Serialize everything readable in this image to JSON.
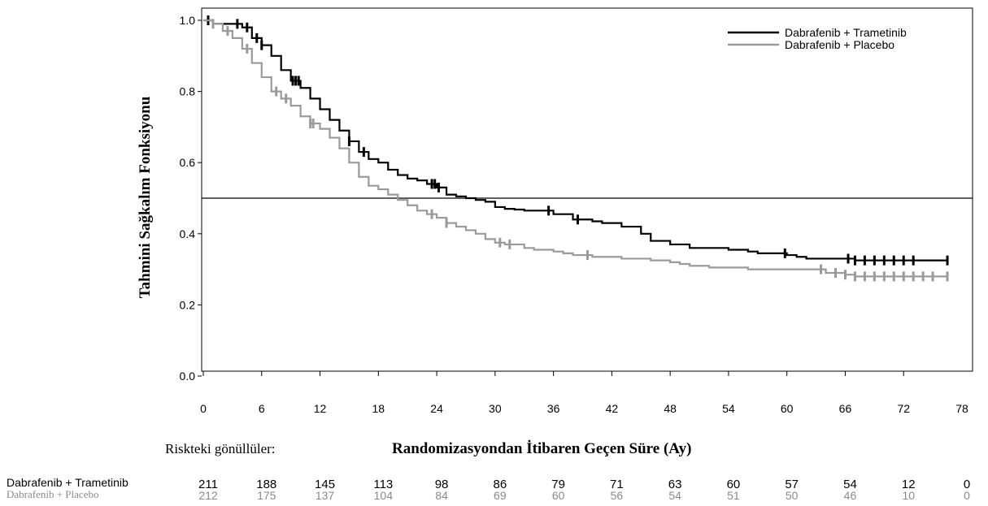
{
  "chart_data": {
    "type": "line",
    "title": "",
    "xlabel": "Randomizasyondan İtibaren Geçen Süre (Ay)",
    "ylabel": "Tahmini Sağkalım Fonksiyonu",
    "xlim": [
      0,
      78
    ],
    "ylim": [
      0,
      1.0
    ],
    "x_ticks": [
      0,
      6,
      12,
      18,
      24,
      30,
      36,
      42,
      48,
      54,
      60,
      66,
      72,
      78
    ],
    "y_ticks": [
      0.0,
      0.2,
      0.4,
      0.6,
      0.8,
      1.0
    ],
    "y_tick_labels": [
      "0.0",
      "0.2",
      "0.4",
      "0.6",
      "0.8",
      "1.0"
    ],
    "reference_line_y": 0.5,
    "legend_position": "top-right",
    "series": [
      {
        "name": "Dabrafenib + Trametinib",
        "color": "#000000",
        "step_points": [
          [
            0,
            1.0
          ],
          [
            1,
            0.99
          ],
          [
            3,
            0.99
          ],
          [
            4,
            0.98
          ],
          [
            5,
            0.95
          ],
          [
            6,
            0.93
          ],
          [
            7,
            0.9
          ],
          [
            8,
            0.86
          ],
          [
            9,
            0.83
          ],
          [
            10,
            0.81
          ],
          [
            11,
            0.78
          ],
          [
            12,
            0.75
          ],
          [
            13,
            0.72
          ],
          [
            14,
            0.69
          ],
          [
            15,
            0.66
          ],
          [
            16,
            0.63
          ],
          [
            17,
            0.61
          ],
          [
            18,
            0.6
          ],
          [
            19,
            0.58
          ],
          [
            20,
            0.565
          ],
          [
            21,
            0.555
          ],
          [
            22,
            0.55
          ],
          [
            23,
            0.54
          ],
          [
            24,
            0.53
          ],
          [
            25,
            0.51
          ],
          [
            26,
            0.505
          ],
          [
            27,
            0.5
          ],
          [
            28,
            0.495
          ],
          [
            29,
            0.49
          ],
          [
            30,
            0.475
          ],
          [
            31,
            0.47
          ],
          [
            32,
            0.468
          ],
          [
            33,
            0.465
          ],
          [
            35,
            0.465
          ],
          [
            36,
            0.455
          ],
          [
            37,
            0.455
          ],
          [
            38,
            0.44
          ],
          [
            40,
            0.435
          ],
          [
            41,
            0.43
          ],
          [
            43,
            0.42
          ],
          [
            45,
            0.4
          ],
          [
            46,
            0.38
          ],
          [
            48,
            0.37
          ],
          [
            50,
            0.36
          ],
          [
            53,
            0.36
          ],
          [
            54,
            0.355
          ],
          [
            56,
            0.35
          ],
          [
            57,
            0.345
          ],
          [
            60,
            0.34
          ],
          [
            61,
            0.335
          ],
          [
            62,
            0.33
          ],
          [
            66,
            0.33
          ],
          [
            67,
            0.325
          ],
          [
            73.5,
            0.325
          ],
          [
            76.5,
            0.325
          ]
        ],
        "censor_x": [
          0.5,
          3.5,
          4.5,
          5.5,
          6,
          9.2,
          9.5,
          9.8,
          15,
          16.5,
          23.5,
          23.8,
          24.2,
          35.5,
          38.5,
          59.8,
          66.3,
          67,
          68,
          69,
          70,
          71,
          72,
          73,
          76.5
        ]
      },
      {
        "name": "Dabrafenib + Placebo",
        "color": "#9a9a9a",
        "step_points": [
          [
            0,
            1.0
          ],
          [
            1,
            0.99
          ],
          [
            2,
            0.97
          ],
          [
            3,
            0.95
          ],
          [
            4,
            0.92
          ],
          [
            5,
            0.88
          ],
          [
            6,
            0.84
          ],
          [
            7,
            0.8
          ],
          [
            8,
            0.78
          ],
          [
            9,
            0.76
          ],
          [
            10,
            0.73
          ],
          [
            11,
            0.71
          ],
          [
            12,
            0.695
          ],
          [
            13,
            0.67
          ],
          [
            14,
            0.64
          ],
          [
            15,
            0.6
          ],
          [
            16,
            0.56
          ],
          [
            17,
            0.535
          ],
          [
            18,
            0.525
          ],
          [
            19,
            0.51
          ],
          [
            20,
            0.495
          ],
          [
            21,
            0.48
          ],
          [
            22,
            0.465
          ],
          [
            23,
            0.455
          ],
          [
            24,
            0.445
          ],
          [
            25,
            0.43
          ],
          [
            26,
            0.42
          ],
          [
            27,
            0.41
          ],
          [
            28,
            0.4
          ],
          [
            29,
            0.385
          ],
          [
            30,
            0.375
          ],
          [
            31,
            0.37
          ],
          [
            33,
            0.36
          ],
          [
            34,
            0.355
          ],
          [
            36,
            0.35
          ],
          [
            37,
            0.345
          ],
          [
            38,
            0.34
          ],
          [
            40,
            0.335
          ],
          [
            42,
            0.335
          ],
          [
            43,
            0.33
          ],
          [
            46,
            0.325
          ],
          [
            48,
            0.32
          ],
          [
            49,
            0.315
          ],
          [
            50,
            0.31
          ],
          [
            52,
            0.305
          ],
          [
            56,
            0.3
          ],
          [
            63,
            0.3
          ],
          [
            64,
            0.29
          ],
          [
            66,
            0.285
          ],
          [
            67,
            0.28
          ],
          [
            76.5,
            0.28
          ]
        ],
        "censor_x": [
          1,
          2.5,
          4.5,
          7.5,
          8.5,
          11,
          11.3,
          23.5,
          25,
          30.5,
          31.5,
          39.5,
          63.5,
          65,
          66,
          67,
          68,
          69,
          70,
          71,
          72,
          73,
          74,
          75,
          76.5
        ]
      }
    ]
  },
  "risk_table": {
    "title": "Riskteki gönüllüler:",
    "time_points": [
      0,
      6,
      12,
      18,
      24,
      30,
      36,
      42,
      48,
      54,
      60,
      66,
      72,
      78
    ],
    "rows": [
      {
        "name": "Dabrafenib + Trametinib",
        "values": [
          "211",
          "188",
          "145",
          "113",
          "98",
          "86",
          "79",
          "71",
          "63",
          "60",
          "57",
          "54",
          "12",
          "0"
        ]
      },
      {
        "name": "Dabrafenib + Placebo",
        "values": [
          "212",
          "175",
          "137",
          "104",
          "84",
          "69",
          "60",
          "56",
          "54",
          "51",
          "50",
          "46",
          "10",
          "0"
        ]
      }
    ]
  }
}
